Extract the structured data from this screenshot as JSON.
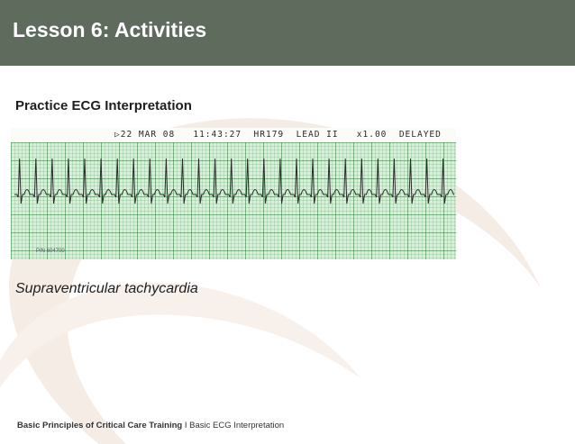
{
  "slide": {
    "title": "Lesson 6: Activities",
    "section_heading": "Practice ECG Interpretation",
    "caption": "Supraventricular tachycardia",
    "footer": {
      "course": "Basic Principles of Critical Care Training",
      "separator": " I ",
      "topic": "Basic ECG Interpretation"
    }
  },
  "ecg": {
    "header_text": "▷22 MAR 08   11:43:27  HR179  LEAD II   x1.00  DELAYED",
    "part_number": "P/N 604700",
    "beat_count": 27
  },
  "colors": {
    "header_bg": "#5e6b5d",
    "grid_bg": "#d9eedb",
    "trace": "#2b2b2b"
  }
}
